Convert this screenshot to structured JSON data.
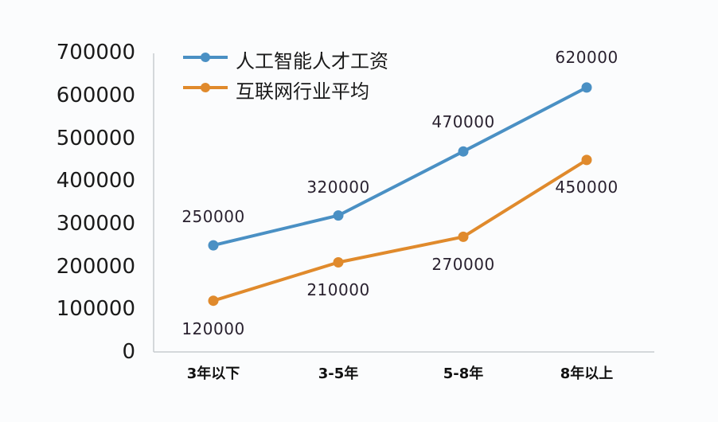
{
  "chart_data": {
    "type": "line",
    "title": "",
    "xlabel": "",
    "ylabel": "",
    "categories": [
      "3年以下",
      "3-5年",
      "5-8年",
      "8年以上"
    ],
    "series": [
      {
        "name": "人工智能人才工资",
        "color": "#4a90c4",
        "values": [
          250000,
          320000,
          470000,
          620000
        ],
        "labels": [
          "250000",
          "320000",
          "470000",
          "620000"
        ]
      },
      {
        "name": "互联网行业平均",
        "color": "#e08a2c",
        "values": [
          120000,
          210000,
          270000,
          450000
        ],
        "labels": [
          "120000",
          "210000",
          "270000",
          "450000"
        ]
      }
    ],
    "ylim": [
      0,
      700000
    ],
    "yticks": [
      "0",
      "100000",
      "200000",
      "300000",
      "400000",
      "500000",
      "600000",
      "700000"
    ],
    "grid": false,
    "legend_position": "top-left inside"
  }
}
